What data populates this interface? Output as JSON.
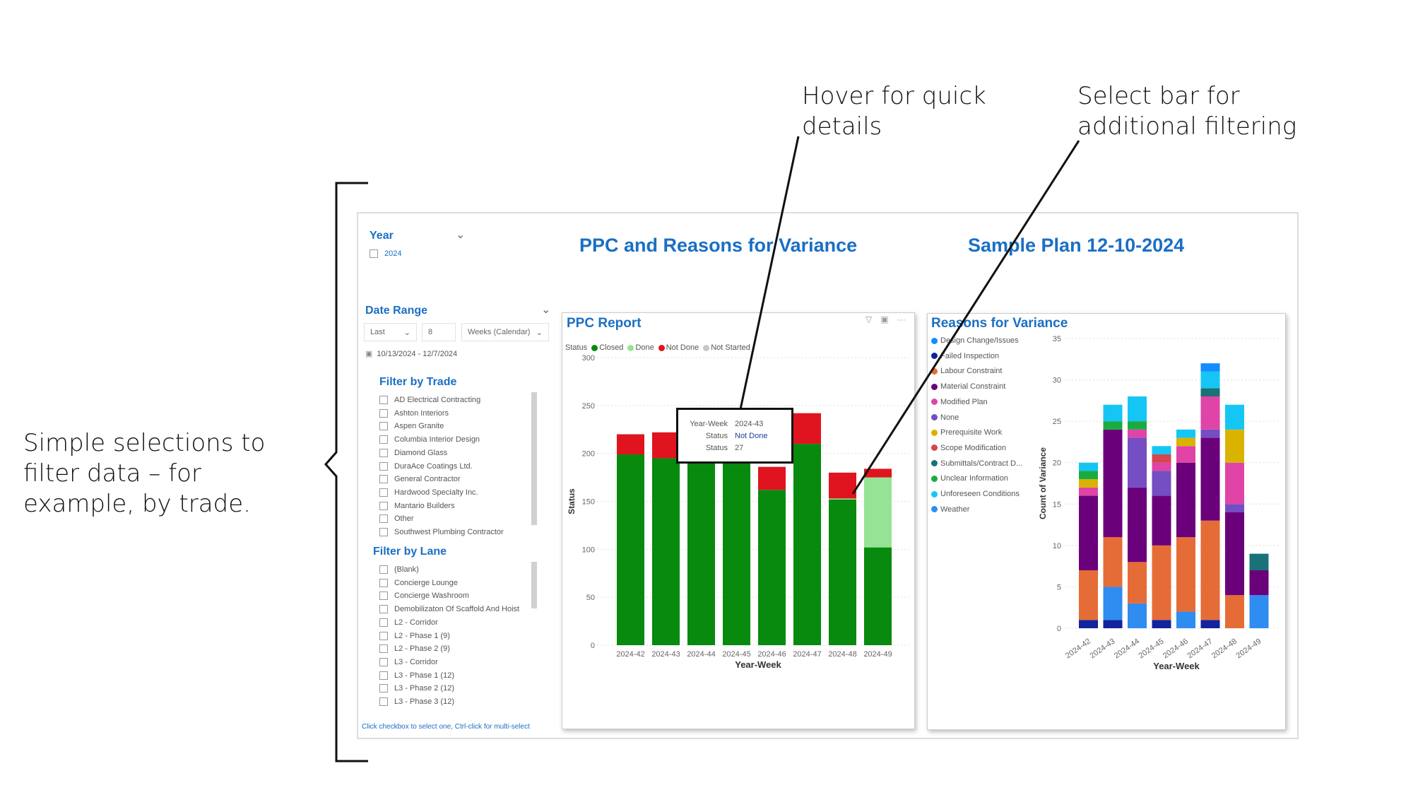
{
  "annotations": {
    "left": "Simple selections to filter data – for example, by trade.",
    "hover": "Hover for quick details",
    "select": "Select bar for additional filtering"
  },
  "header": {
    "title": "PPC and Reasons for Variance",
    "plan": "Sample Plan 12-10-2024"
  },
  "year_slicer": {
    "label": "Year",
    "option": "2024"
  },
  "date_range": {
    "label": "Date Range",
    "mode": "Last",
    "count": "8",
    "unit": "Weeks (Calendar)",
    "range": "10/13/2024 - 12/7/2024"
  },
  "trade_filter": {
    "title": "Filter by Trade",
    "items": [
      "AD Electrical Contracting",
      "Ashton Interiors",
      "Aspen Granite",
      "Columbia Interior Design",
      "Diamond Glass",
      "DuraAce Coatings Ltd.",
      "General Contractor",
      "Hardwood Specialty Inc.",
      "Mantario Builders",
      "Other",
      "Southwest Plumbing Contractor"
    ]
  },
  "lane_filter": {
    "title": "Filter by Lane",
    "items": [
      "(Blank)",
      "Concierge Lounge",
      "Concierge Washroom",
      "Demobilizaton Of Scaffold And Hoist",
      "L2 - Corridor",
      "L2 - Phase 1 (9)",
      "L2 - Phase 2 (9)",
      "L3 - Corridor",
      "L3 - Phase 1 (12)",
      "L3 - Phase 2 (12)",
      "L3 - Phase 3 (12)"
    ]
  },
  "footer_hint": "Click checkbox to select one, Ctrl-click for multi-select",
  "tooltip": {
    "rows": [
      [
        "Year-Week",
        "2024-43"
      ],
      [
        "Status",
        "Not Done"
      ],
      [
        "Status",
        "27"
      ]
    ]
  },
  "chart_data": [
    {
      "type": "bar",
      "stacked": true,
      "title": "PPC Report",
      "legend_title": "Status",
      "legend_position": "top-left",
      "xlabel": "Year-Week",
      "ylabel": "Status",
      "ylim": [
        0,
        300
      ],
      "yticks": [
        0,
        50,
        100,
        150,
        200,
        250,
        300
      ],
      "grid": true,
      "categories": [
        "2024-42",
        "2024-43",
        "2024-44",
        "2024-45",
        "2024-46",
        "2024-47",
        "2024-48",
        "2024-49"
      ],
      "series": [
        {
          "name": "Closed",
          "color": "#078a0e",
          "values": [
            199,
            195,
            202,
            197,
            162,
            210,
            152,
            102
          ]
        },
        {
          "name": "Done",
          "color": "#95e495",
          "values": [
            0,
            0,
            0,
            0,
            0,
            0,
            1,
            73
          ]
        },
        {
          "name": "Not Done",
          "color": "#e0141e",
          "values": [
            21,
            27,
            3,
            6,
            24,
            32,
            27,
            9
          ]
        },
        {
          "name": "Not Started",
          "color": "#c8c8c8",
          "values": [
            0,
            0,
            0,
            0,
            0,
            0,
            0,
            0
          ]
        }
      ]
    },
    {
      "type": "bar",
      "stacked": true,
      "title": "Reasons for Variance",
      "legend_position": "left",
      "xlabel": "Year-Week",
      "ylabel": "Count of Variance",
      "ylim": [
        0,
        35
      ],
      "yticks": [
        0,
        5,
        10,
        15,
        20,
        25,
        30,
        35
      ],
      "grid": true,
      "categories": [
        "2024-42",
        "2024-43",
        "2024-44",
        "2024-45",
        "2024-46",
        "2024-47",
        "2024-48",
        "2024-49"
      ],
      "stack_order": [
        "Failed Inspection",
        "Weather",
        "Labour Constraint",
        "Material Constraint",
        "None",
        "Modified Plan",
        "Scope Modification",
        "Prerequisite Work",
        "Unclear Information",
        "Submittals/Contract D...",
        "Unforeseen Conditions",
        "Design Change/Issues"
      ],
      "series": [
        {
          "name": "Design Change/Issues",
          "color": "#118dff",
          "values": [
            0,
            0,
            0,
            0,
            0,
            1,
            0,
            0
          ]
        },
        {
          "name": "Failed Inspection",
          "color": "#12239e",
          "values": [
            1,
            1,
            0,
            1,
            0,
            1,
            0,
            0
          ]
        },
        {
          "name": "Labour Constraint",
          "color": "#e66c37",
          "values": [
            6,
            6,
            5,
            9,
            9,
            12,
            4,
            0
          ]
        },
        {
          "name": "Material Constraint",
          "color": "#6b007b",
          "values": [
            9,
            13,
            9,
            6,
            9,
            10,
            10,
            3
          ]
        },
        {
          "name": "Modified Plan",
          "color": "#e044a7",
          "values": [
            1,
            0,
            1,
            1,
            2,
            4,
            5,
            0
          ]
        },
        {
          "name": "None",
          "color": "#744ec2",
          "values": [
            0,
            0,
            6,
            3,
            0,
            1,
            1,
            0
          ]
        },
        {
          "name": "Prerequisite Work",
          "color": "#d9b300",
          "values": [
            1,
            0,
            0,
            0,
            1,
            0,
            4,
            0
          ]
        },
        {
          "name": "Scope Modification",
          "color": "#d64550",
          "values": [
            0,
            0,
            0,
            1,
            0,
            0,
            0,
            0
          ]
        },
        {
          "name": "Submittals/Contract D...",
          "color": "#197278",
          "values": [
            0,
            0,
            0,
            0,
            0,
            1,
            0,
            2
          ]
        },
        {
          "name": "Unclear Information",
          "color": "#1aab40",
          "values": [
            1,
            1,
            1,
            0,
            0,
            0,
            0,
            0
          ]
        },
        {
          "name": "Unforeseen Conditions",
          "color": "#15c6f4",
          "values": [
            1,
            2,
            3,
            1,
            1,
            2,
            3,
            0
          ]
        },
        {
          "name": "Weather",
          "color": "#2f8cf0",
          "values": [
            0,
            4,
            3,
            0,
            2,
            0,
            0,
            4
          ]
        }
      ]
    }
  ]
}
